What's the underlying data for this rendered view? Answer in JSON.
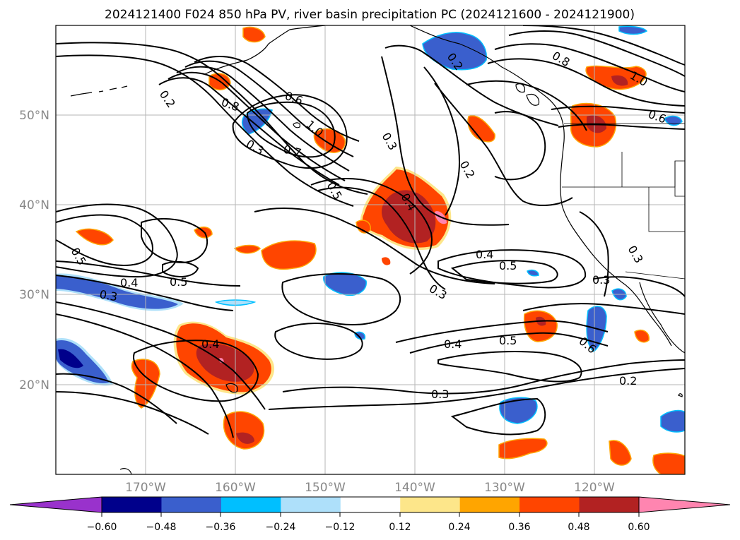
{
  "title": "2024121400 F024 850 hPa PV, river basin precipitation PC (2024121600 - 2024121900)",
  "map": {
    "lon_labels": [
      "170°W",
      "160°W",
      "150°W",
      "140°W",
      "130°W",
      "120°W"
    ],
    "lat_labels": [
      "50°N",
      "40°N",
      "30°N",
      "20°N"
    ],
    "contour_labels": [
      "0.2",
      "0.8",
      "0.6",
      "1.0",
      "0.3",
      "0.7",
      "0.5",
      "0.3",
      "0.4",
      "0.2",
      "0.5",
      "0.4",
      "0.3",
      "0.3",
      "0.4",
      "0.5",
      "0.4",
      "0.5",
      "0.3",
      "0.2",
      "0.6",
      "0.3",
      "0.8",
      "1.0",
      "0.6",
      "0.3",
      "0.4",
      "0.5",
      "0.2"
    ],
    "colors": {
      "shading": {
        "pos_012": "#fde68a",
        "pos_024": "#ffa500",
        "pos_036": "#ff4500",
        "pos_048": "#b22222",
        "pos_060": "#ff85b0",
        "neg_012": "#aee0fa",
        "neg_024": "#00bfff",
        "neg_036": "#3a5fcd",
        "neg_048": "#00008b",
        "neg_060": "#9932cc"
      }
    }
  },
  "colorbar": {
    "tick_labels": [
      "−0.60",
      "−0.48",
      "−0.36",
      "−0.24",
      "−0.12",
      "0.12",
      "0.24",
      "0.36",
      "0.48",
      "0.60"
    ],
    "colors": [
      "#9932cc",
      "#00008b",
      "#3a5fcd",
      "#00bfff",
      "#aee0fa",
      "#ffffff",
      "#fde68a",
      "#ffa500",
      "#ff4500",
      "#b22222",
      "#ff85b0"
    ]
  }
}
